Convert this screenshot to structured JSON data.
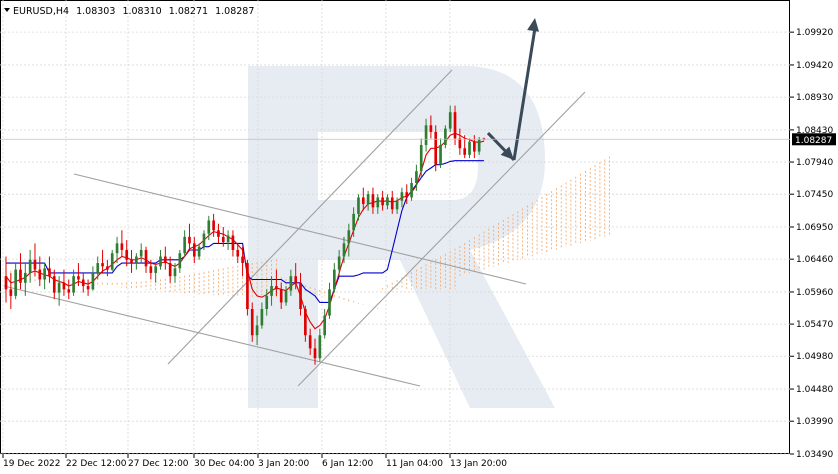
{
  "header": {
    "symbol": "EURUSD,H4",
    "open": "1.08303",
    "high": "1.08310",
    "low": "1.08271",
    "close": "1.08287"
  },
  "chart_data": {
    "type": "candlestick",
    "symbol": "EURUSD",
    "timeframe": "H4",
    "current_price": 1.08287,
    "ylim": [
      1.0349,
      1.1041
    ],
    "y_ticks": [
      "1.09920",
      "1.09420",
      "1.08930",
      "1.08430",
      "1.07940",
      "1.07450",
      "1.06950",
      "1.06460",
      "1.05960",
      "1.05470",
      "1.04980",
      "1.04480",
      "1.03990",
      "1.03490"
    ],
    "x_ticks": [
      "19 Dec 2022",
      "22 Dec 12:00",
      "27 Dec 12:00",
      "30 Dec 04:00",
      "3 Jan 20:00",
      "6 Jan 12:00",
      "11 Jan 04:00",
      "13 Jan 20:00"
    ],
    "grid": true,
    "indicators": [
      "Ichimoku Kinko Hyo"
    ],
    "annotations": [
      "descending channel",
      "ascending channel",
      "forecast arrow down to channel support",
      "forecast arrow up"
    ],
    "colors": {
      "bull_candle": "#2e7d32",
      "bear_candle": "#e00000",
      "tenkan": "#e00000",
      "kijun": "#0000cc",
      "cloud": "#f4a460",
      "channel": "#a0a0a0",
      "arrow": "#3a4a58",
      "price_box": "#000000"
    },
    "ohlc": [
      [
        1.062,
        1.065,
        1.058,
        1.06
      ],
      [
        1.06,
        1.0625,
        1.057,
        1.059
      ],
      [
        1.059,
        1.064,
        1.0585,
        1.063
      ],
      [
        1.063,
        1.0655,
        1.06,
        1.061
      ],
      [
        1.061,
        1.064,
        1.059,
        1.0625
      ],
      [
        1.0625,
        1.066,
        1.061,
        1.0645
      ],
      [
        1.0645,
        1.067,
        1.062,
        1.063
      ],
      [
        1.063,
        1.065,
        1.0605,
        1.0615
      ],
      [
        1.0615,
        1.064,
        1.06,
        1.0632
      ],
      [
        1.0632,
        1.065,
        1.061,
        1.062
      ],
      [
        1.062,
        1.063,
        1.0585,
        1.0595
      ],
      [
        1.0595,
        1.062,
        1.0575,
        1.061
      ],
      [
        1.061,
        1.063,
        1.059,
        1.06
      ],
      [
        1.06,
        1.0615,
        1.0585,
        1.0595
      ],
      [
        1.0595,
        1.063,
        1.059,
        1.062
      ],
      [
        1.062,
        1.064,
        1.0605,
        1.0615
      ],
      [
        1.0615,
        1.0625,
        1.0595,
        1.0605
      ],
      [
        1.0605,
        1.0615,
        1.059,
        1.06
      ],
      [
        1.06,
        1.0635,
        1.0598,
        1.0625
      ],
      [
        1.0625,
        1.065,
        1.0615,
        1.064
      ],
      [
        1.064,
        1.066,
        1.0625,
        1.0635
      ],
      [
        1.0635,
        1.0645,
        1.062,
        1.063
      ],
      [
        1.063,
        1.066,
        1.0628,
        1.0655
      ],
      [
        1.0655,
        1.068,
        1.064,
        1.067
      ],
      [
        1.067,
        1.069,
        1.065,
        1.066
      ],
      [
        1.066,
        1.0675,
        1.0635,
        1.0645
      ],
      [
        1.0645,
        1.066,
        1.0625,
        1.064
      ],
      [
        1.064,
        1.0655,
        1.063,
        1.065
      ],
      [
        1.065,
        1.067,
        1.064,
        1.066
      ],
      [
        1.066,
        1.0665,
        1.0625,
        1.0635
      ],
      [
        1.0635,
        1.0645,
        1.0615,
        1.0625
      ],
      [
        1.0625,
        1.064,
        1.061,
        1.0635
      ],
      [
        1.0635,
        1.066,
        1.063,
        1.065
      ],
      [
        1.065,
        1.0665,
        1.063,
        1.064
      ],
      [
        1.064,
        1.065,
        1.061,
        1.062
      ],
      [
        1.062,
        1.064,
        1.061,
        1.0632
      ],
      [
        1.0632,
        1.066,
        1.0625,
        1.0655
      ],
      [
        1.0655,
        1.069,
        1.065,
        1.068
      ],
      [
        1.068,
        1.07,
        1.066,
        1.067
      ],
      [
        1.067,
        1.068,
        1.064,
        1.065
      ],
      [
        1.065,
        1.067,
        1.0645,
        1.0665
      ],
      [
        1.0665,
        1.069,
        1.066,
        1.0685
      ],
      [
        1.0685,
        1.0712,
        1.0675,
        1.0705
      ],
      [
        1.0705,
        1.0715,
        1.068,
        1.069
      ],
      [
        1.069,
        1.07,
        1.067,
        1.068
      ],
      [
        1.068,
        1.0695,
        1.0665,
        1.0672
      ],
      [
        1.0672,
        1.069,
        1.066,
        1.0682
      ],
      [
        1.0682,
        1.069,
        1.065,
        1.066
      ],
      [
        1.066,
        1.067,
        1.064,
        1.065
      ],
      [
        1.065,
        1.0665,
        1.062,
        1.064
      ],
      [
        1.064,
        1.0645,
        1.056,
        1.057
      ],
      [
        1.057,
        1.058,
        1.052,
        1.053
      ],
      [
        1.053,
        1.056,
        1.0515,
        1.0545
      ],
      [
        1.0545,
        1.058,
        1.054,
        1.057
      ],
      [
        1.057,
        1.06,
        1.056,
        1.059
      ],
      [
        1.059,
        1.062,
        1.0575,
        1.0605
      ],
      [
        1.0605,
        1.063,
        1.059,
        1.06
      ],
      [
        1.06,
        1.061,
        1.057,
        1.058
      ],
      [
        1.058,
        1.0605,
        1.0575,
        1.0598
      ],
      [
        1.0598,
        1.063,
        1.059,
        1.062
      ],
      [
        1.062,
        1.064,
        1.06,
        1.061
      ],
      [
        1.061,
        1.0625,
        1.056,
        1.057
      ],
      [
        1.057,
        1.0575,
        1.052,
        1.053
      ],
      [
        1.053,
        1.054,
        1.05,
        1.051
      ],
      [
        1.051,
        1.0525,
        1.0485,
        1.0495
      ],
      [
        1.0495,
        1.054,
        1.049,
        1.053
      ],
      [
        1.053,
        1.057,
        1.0525,
        1.056
      ],
      [
        1.056,
        1.061,
        1.0555,
        1.06
      ],
      [
        1.06,
        1.064,
        1.0595,
        1.063
      ],
      [
        1.063,
        1.066,
        1.062,
        1.065
      ],
      [
        1.065,
        1.068,
        1.064,
        1.067
      ],
      [
        1.067,
        1.07,
        1.065,
        1.069
      ],
      [
        1.069,
        1.0725,
        1.068,
        1.0715
      ],
      [
        1.0715,
        1.0745,
        1.0705,
        1.074
      ],
      [
        1.074,
        1.0755,
        1.072,
        1.073
      ],
      [
        1.073,
        1.075,
        1.072,
        1.0745
      ],
      [
        1.0745,
        1.0755,
        1.0715,
        1.0725
      ],
      [
        1.0725,
        1.0745,
        1.0715,
        1.074
      ],
      [
        1.074,
        1.075,
        1.072,
        1.0728
      ],
      [
        1.0728,
        1.0745,
        1.0722,
        1.074
      ],
      [
        1.074,
        1.075,
        1.0715,
        1.0722
      ],
      [
        1.0722,
        1.074,
        1.0715,
        1.0735
      ],
      [
        1.0735,
        1.0755,
        1.0725,
        1.0748
      ],
      [
        1.0748,
        1.076,
        1.073,
        1.074
      ],
      [
        1.074,
        1.077,
        1.0735,
        1.0762
      ],
      [
        1.0762,
        1.079,
        1.075,
        1.078
      ],
      [
        1.078,
        1.083,
        1.077,
        1.082
      ],
      [
        1.082,
        1.086,
        1.081,
        1.085
      ],
      [
        1.085,
        1.0865,
        1.083,
        1.084
      ],
      [
        1.084,
        1.085,
        1.078,
        1.079
      ],
      [
        1.079,
        1.083,
        1.0785,
        1.082
      ],
      [
        1.082,
        1.085,
        1.0815,
        1.0845
      ],
      [
        1.0845,
        1.088,
        1.084,
        1.087
      ],
      [
        1.087,
        1.088,
        1.082,
        1.083
      ],
      [
        1.083,
        1.0845,
        1.0805,
        1.0815
      ],
      [
        1.0815,
        1.0835,
        1.08,
        1.0805
      ],
      [
        1.0805,
        1.083,
        1.08,
        1.0825
      ],
      [
        1.0825,
        1.0835,
        1.08,
        1.081
      ],
      [
        1.081,
        1.0832,
        1.0805,
        1.0828
      ],
      [
        1.083,
        1.0831,
        1.0827,
        1.0829
      ]
    ],
    "tenkan": [
      1.062,
      1.061,
      1.0612,
      1.0615,
      1.0618,
      1.0625,
      1.0628,
      1.0625,
      1.0622,
      1.062,
      1.0615,
      1.0612,
      1.061,
      1.0605,
      1.0608,
      1.0612,
      1.061,
      1.0608,
      1.0612,
      1.062,
      1.0628,
      1.0632,
      1.0638,
      1.0645,
      1.065,
      1.0648,
      1.0645,
      1.0645,
      1.0648,
      1.0645,
      1.064,
      1.0638,
      1.064,
      1.0642,
      1.0638,
      1.0635,
      1.064,
      1.065,
      1.0662,
      1.0665,
      1.0668,
      1.0675,
      1.0682,
      1.0688,
      1.0686,
      1.0684,
      1.068,
      1.0676,
      1.0668,
      1.066,
      1.063,
      1.06,
      1.059,
      1.0588,
      1.0592,
      1.0598,
      1.0602,
      1.06,
      1.0598,
      1.0605,
      1.061,
      1.059,
      1.0565,
      1.055,
      1.054,
      1.0545,
      1.0555,
      1.0575,
      1.06,
      1.0625,
      1.065,
      1.067,
      1.069,
      1.071,
      1.0722,
      1.073,
      1.0732,
      1.0735,
      1.0734,
      1.0735,
      1.0733,
      1.0735,
      1.074,
      1.0742,
      1.0748,
      1.0758,
      1.078,
      1.0805,
      1.0815,
      1.0815,
      1.0818,
      1.0825,
      1.0835,
      1.0838,
      1.0835,
      1.083,
      1.0828,
      1.0825,
      1.0824,
      1.0826
    ],
    "kijun": [
      1.064,
      1.064,
      1.064,
      1.064,
      1.064,
      1.064,
      1.064,
      1.064,
      1.064,
      1.0625,
      1.0625,
      1.0625,
      1.0625,
      1.0625,
      1.0625,
      1.0625,
      1.0625,
      1.0625,
      1.0625,
      1.0625,
      1.0625,
      1.0625,
      1.0625,
      1.0635,
      1.064,
      1.064,
      1.064,
      1.064,
      1.064,
      1.064,
      1.064,
      1.064,
      1.0645,
      1.0645,
      1.0645,
      1.0645,
      1.0645,
      1.065,
      1.066,
      1.066,
      1.066,
      1.0665,
      1.0665,
      1.067,
      1.067,
      1.067,
      1.067,
      1.067,
      1.067,
      1.067,
      1.062,
      1.0615,
      1.0615,
      1.0615,
      1.0615,
      1.0615,
      1.0615,
      1.0615,
      1.061,
      1.061,
      1.061,
      1.061,
      1.06,
      1.0595,
      1.059,
      1.058,
      1.058,
      1.058,
      1.06,
      1.062,
      1.062,
      1.062,
      1.062,
      1.0622,
      1.0625,
      1.0625,
      1.0625,
      1.0625,
      1.0625,
      1.063,
      1.066,
      1.069,
      1.072,
      1.074,
      1.075,
      1.076,
      1.077,
      1.078,
      1.0785,
      1.079,
      1.079,
      1.0792,
      1.0795,
      1.0796,
      1.0796,
      1.0796,
      1.0796,
      1.0796,
      1.0796,
      1.0796
    ]
  }
}
